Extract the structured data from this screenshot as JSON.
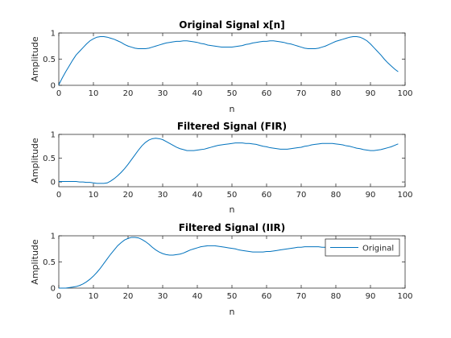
{
  "chart_data": [
    {
      "type": "line",
      "title": "Original Signal x[n]",
      "xlabel": "n",
      "ylabel": "Amplitude",
      "xlim": [
        0,
        100
      ],
      "ylim": [
        0,
        1
      ],
      "xticks": [
        "0",
        "10",
        "20",
        "30",
        "40",
        "50",
        "60",
        "70",
        "80",
        "90",
        "100"
      ],
      "yticks": [
        "0",
        "0.5",
        "1"
      ],
      "color": "#0072BD",
      "series": [
        {
          "x": [
            0,
            1,
            2,
            3,
            4,
            5,
            6,
            7,
            8,
            9,
            10,
            11,
            12,
            13,
            14,
            15,
            16,
            17,
            18,
            19,
            20,
            21,
            22,
            23,
            24,
            25,
            26,
            27,
            28,
            29,
            30,
            31,
            32,
            33,
            34,
            35,
            36,
            37,
            38,
            39,
            40,
            41,
            42,
            43,
            44,
            45,
            46,
            47,
            48,
            49,
            50,
            51,
            52,
            53,
            54,
            55,
            56,
            57,
            58,
            59,
            60,
            61,
            62,
            63,
            64,
            65,
            66,
            67,
            68,
            69,
            70,
            71,
            72,
            73,
            74,
            75,
            76,
            77,
            78,
            79,
            80,
            81,
            82,
            83,
            84,
            85,
            86,
            87,
            88,
            89,
            90,
            91,
            92,
            93,
            94,
            95,
            96,
            97,
            98
          ],
          "y": [
            0.01,
            0.14,
            0.26,
            0.37,
            0.48,
            0.58,
            0.65,
            0.72,
            0.79,
            0.85,
            0.89,
            0.92,
            0.93,
            0.93,
            0.92,
            0.9,
            0.88,
            0.85,
            0.82,
            0.78,
            0.75,
            0.73,
            0.71,
            0.7,
            0.7,
            0.7,
            0.71,
            0.73,
            0.75,
            0.77,
            0.79,
            0.81,
            0.82,
            0.83,
            0.84,
            0.84,
            0.85,
            0.85,
            0.84,
            0.83,
            0.82,
            0.8,
            0.79,
            0.77,
            0.76,
            0.75,
            0.74,
            0.73,
            0.73,
            0.73,
            0.73,
            0.74,
            0.75,
            0.76,
            0.78,
            0.79,
            0.81,
            0.82,
            0.83,
            0.84,
            0.84,
            0.85,
            0.85,
            0.84,
            0.83,
            0.82,
            0.8,
            0.79,
            0.77,
            0.75,
            0.73,
            0.71,
            0.7,
            0.7,
            0.7,
            0.71,
            0.73,
            0.75,
            0.78,
            0.81,
            0.84,
            0.86,
            0.88,
            0.9,
            0.92,
            0.93,
            0.93,
            0.92,
            0.89,
            0.85,
            0.79,
            0.72,
            0.65,
            0.58,
            0.5,
            0.43,
            0.37,
            0.31,
            0.26
          ]
        }
      ]
    },
    {
      "type": "line",
      "title": "Filtered Signal (FIR)",
      "xlabel": "n",
      "ylabel": "Amplitude",
      "xlim": [
        0,
        100
      ],
      "ylim": [
        -0.1,
        1
      ],
      "xticks": [
        "0",
        "10",
        "20",
        "30",
        "40",
        "50",
        "60",
        "70",
        "80",
        "90",
        "100"
      ],
      "yticks": [
        "0",
        "0.5",
        "1"
      ],
      "color": "#0072BD",
      "series": [
        {
          "x": [
            0,
            1,
            2,
            3,
            4,
            5,
            6,
            7,
            8,
            9,
            10,
            11,
            12,
            13,
            14,
            15,
            16,
            17,
            18,
            19,
            20,
            21,
            22,
            23,
            24,
            25,
            26,
            27,
            28,
            29,
            30,
            31,
            32,
            33,
            34,
            35,
            36,
            37,
            38,
            39,
            40,
            41,
            42,
            43,
            44,
            45,
            46,
            47,
            48,
            49,
            50,
            51,
            52,
            53,
            54,
            55,
            56,
            57,
            58,
            59,
            60,
            61,
            62,
            63,
            64,
            65,
            66,
            67,
            68,
            69,
            70,
            71,
            72,
            73,
            74,
            75,
            76,
            77,
            78,
            79,
            80,
            81,
            82,
            83,
            84,
            85,
            86,
            87,
            88,
            89,
            90,
            91,
            92,
            93,
            94,
            95,
            96,
            97,
            98
          ],
          "y": [
            0.01,
            0.01,
            0.01,
            0.01,
            0.01,
            0.01,
            0.0,
            0.0,
            -0.01,
            -0.01,
            -0.02,
            -0.03,
            -0.03,
            -0.03,
            -0.02,
            0.02,
            0.07,
            0.13,
            0.2,
            0.28,
            0.37,
            0.47,
            0.57,
            0.67,
            0.76,
            0.83,
            0.88,
            0.91,
            0.92,
            0.91,
            0.89,
            0.85,
            0.81,
            0.77,
            0.73,
            0.7,
            0.68,
            0.66,
            0.66,
            0.66,
            0.67,
            0.68,
            0.69,
            0.71,
            0.73,
            0.75,
            0.77,
            0.78,
            0.79,
            0.8,
            0.81,
            0.82,
            0.82,
            0.82,
            0.81,
            0.81,
            0.8,
            0.79,
            0.77,
            0.75,
            0.74,
            0.72,
            0.71,
            0.7,
            0.69,
            0.69,
            0.69,
            0.7,
            0.71,
            0.72,
            0.73,
            0.75,
            0.76,
            0.78,
            0.79,
            0.8,
            0.81,
            0.81,
            0.81,
            0.81,
            0.8,
            0.79,
            0.78,
            0.76,
            0.75,
            0.73,
            0.71,
            0.7,
            0.68,
            0.67,
            0.66,
            0.66,
            0.67,
            0.68,
            0.7,
            0.72,
            0.74,
            0.77,
            0.8
          ]
        }
      ]
    },
    {
      "type": "line",
      "title": "Filtered Signal (IIR)",
      "xlabel": "n",
      "ylabel": "Amplitude",
      "xlim": [
        0,
        100
      ],
      "ylim": [
        0,
        1
      ],
      "xticks": [
        "0",
        "10",
        "20",
        "30",
        "40",
        "50",
        "60",
        "70",
        "80",
        "90",
        "100"
      ],
      "yticks": [
        "0",
        "0.5",
        "1"
      ],
      "color": "#0072BD",
      "legend": {
        "position": "top-right",
        "entries": [
          "Original"
        ]
      },
      "series": [
        {
          "name": "Original",
          "x": [
            0,
            1,
            2,
            3,
            4,
            5,
            6,
            7,
            8,
            9,
            10,
            11,
            12,
            13,
            14,
            15,
            16,
            17,
            18,
            19,
            20,
            21,
            22,
            23,
            24,
            25,
            26,
            27,
            28,
            29,
            30,
            31,
            32,
            33,
            34,
            35,
            36,
            37,
            38,
            39,
            40,
            41,
            42,
            43,
            44,
            45,
            46,
            47,
            48,
            49,
            50,
            51,
            52,
            53,
            54,
            55,
            56,
            57,
            58,
            59,
            60,
            61,
            62,
            63,
            64,
            65,
            66,
            67,
            68,
            69,
            70,
            71,
            72,
            73,
            74,
            75,
            76,
            77,
            78,
            79,
            80,
            81,
            82,
            83,
            84,
            85,
            86,
            87,
            88,
            89,
            90,
            91,
            92,
            93,
            94,
            95,
            96,
            97,
            98
          ],
          "y": [
            0.0,
            0.0,
            0.0,
            0.01,
            0.02,
            0.03,
            0.05,
            0.08,
            0.12,
            0.17,
            0.23,
            0.3,
            0.38,
            0.47,
            0.56,
            0.65,
            0.73,
            0.81,
            0.87,
            0.92,
            0.95,
            0.97,
            0.97,
            0.96,
            0.93,
            0.89,
            0.84,
            0.78,
            0.73,
            0.69,
            0.66,
            0.64,
            0.63,
            0.63,
            0.64,
            0.65,
            0.67,
            0.7,
            0.73,
            0.75,
            0.77,
            0.79,
            0.8,
            0.81,
            0.81,
            0.81,
            0.8,
            0.79,
            0.78,
            0.77,
            0.76,
            0.75,
            0.73,
            0.72,
            0.71,
            0.7,
            0.69,
            0.69,
            0.69,
            0.69,
            0.7,
            0.7,
            0.71,
            0.72,
            0.73,
            0.74,
            0.75,
            0.76,
            0.77,
            0.78,
            0.78,
            0.79,
            0.79,
            0.79,
            0.79,
            0.79,
            0.78,
            0.78,
            0.77,
            0.76,
            0.76,
            0.75,
            0.74,
            0.73,
            0.73,
            0.73,
            0.72,
            0.72,
            0.72,
            0.72,
            0.73,
            0.74,
            0.76,
            0.78,
            0.8,
            0.82,
            0.84,
            0.86,
            0.88
          ]
        }
      ]
    }
  ]
}
